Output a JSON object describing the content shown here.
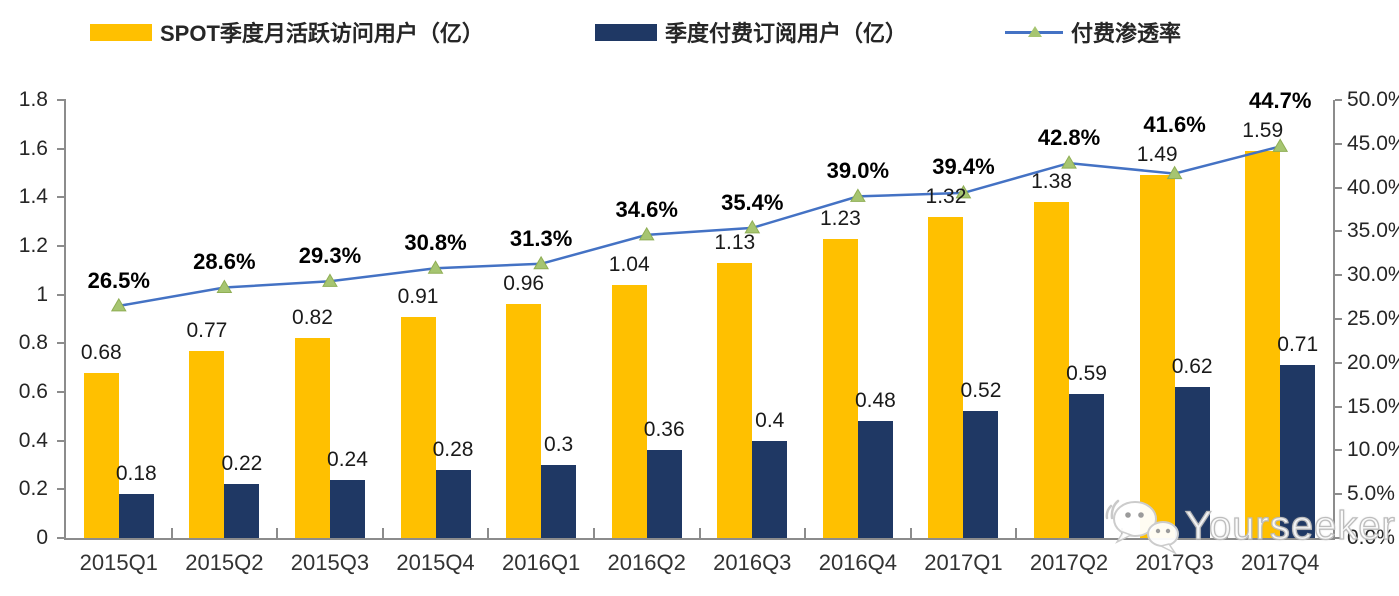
{
  "legend": [
    {
      "label": "SPOT季度月活跃访问用户（亿）",
      "color": "#FFC000",
      "type": "bar"
    },
    {
      "label": "季度付费订阅用户（亿）",
      "color": "#1F3864",
      "type": "bar"
    },
    {
      "label": "付费渗透率",
      "color": "#4472C4",
      "marker_color": "#A6C571",
      "type": "line"
    }
  ],
  "watermark": {
    "text": "Yourseeker",
    "icon": "wechat-icon"
  },
  "chart_data": {
    "type": "bar+line combo",
    "title": "",
    "xlabel": "",
    "ylabel_left": "",
    "ylabel_right": "",
    "grid": false,
    "legend_position": "top",
    "categories": [
      "2015Q1",
      "2015Q2",
      "2015Q3",
      "2015Q4",
      "2016Q1",
      "2016Q2",
      "2016Q3",
      "2016Q4",
      "2017Q1",
      "2017Q2",
      "2017Q3",
      "2017Q4"
    ],
    "series": [
      {
        "name": "SPOT季度月活跃访问用户（亿）",
        "type": "bar",
        "axis": "left",
        "color": "#FFC000",
        "values": [
          0.68,
          0.77,
          0.82,
          0.91,
          0.96,
          1.04,
          1.13,
          1.23,
          1.32,
          1.38,
          1.49,
          1.59
        ],
        "labels": [
          "0.68",
          "0.77",
          "0.82",
          "0.91",
          "0.96",
          "1.04",
          "1.13",
          "1.23",
          "1.32",
          "1.38",
          "1.49",
          "1.59"
        ]
      },
      {
        "name": "季度付费订阅用户（亿）",
        "type": "bar",
        "axis": "left",
        "color": "#1F3864",
        "values": [
          0.18,
          0.22,
          0.24,
          0.28,
          0.3,
          0.36,
          0.4,
          0.48,
          0.52,
          0.59,
          0.62,
          0.71
        ],
        "labels": [
          "0.18",
          "0.22",
          "0.24",
          "0.28",
          "0.3",
          "0.36",
          "0.4",
          "0.48",
          "0.52",
          "0.59",
          "0.62",
          "0.71"
        ]
      },
      {
        "name": "付费渗透率",
        "type": "line",
        "axis": "right",
        "color": "#4472C4",
        "marker": "triangle",
        "marker_color": "#A6C571",
        "values": [
          26.5,
          28.6,
          29.3,
          30.8,
          31.3,
          34.6,
          35.4,
          39.0,
          39.4,
          42.8,
          41.6,
          44.7
        ],
        "labels": [
          "26.5%",
          "28.6%",
          "29.3%",
          "30.8%",
          "31.3%",
          "34.6%",
          "35.4%",
          "39.0%",
          "39.4%",
          "42.8%",
          "41.6%",
          "44.7%"
        ]
      }
    ],
    "left_axis": {
      "min": 0,
      "max": 1.8,
      "step": 0.2,
      "ticks": [
        "1.8",
        "1.6",
        "1.4",
        "1.2",
        "1",
        "0.8",
        "0.6",
        "0.4",
        "0.2",
        "0"
      ]
    },
    "right_axis": {
      "min": 0,
      "max": 50,
      "step": 5,
      "ticks": [
        "50.0%",
        "45.0%",
        "40.0%",
        "35.0%",
        "30.0%",
        "25.0%",
        "20.0%",
        "15.0%",
        "10.0%",
        "5.0%",
        "0.0%"
      ]
    }
  }
}
